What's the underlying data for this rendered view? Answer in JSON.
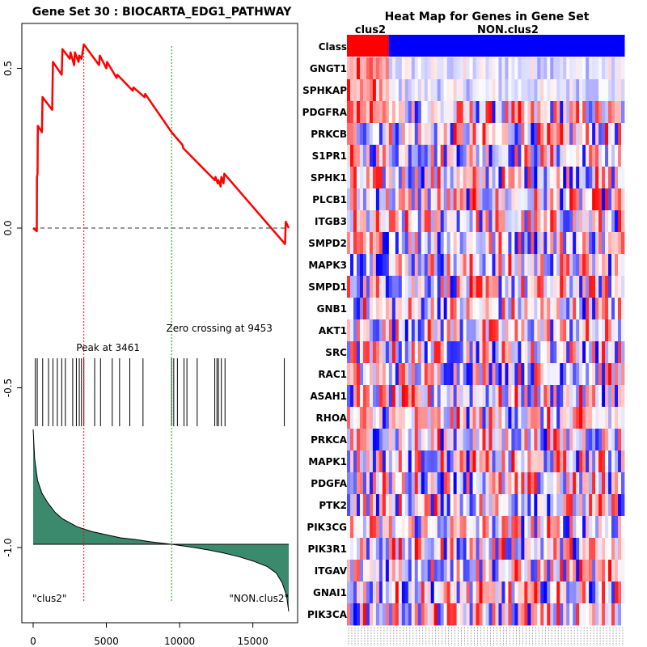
{
  "chart_data": [
    {
      "type": "line",
      "title": "Gene Set  30 : BIOCARTA_EDG1_PATHWAY",
      "xlabel": "",
      "ylabel": "",
      "xlim": [
        0,
        17500
      ],
      "ylim": [
        -1.2,
        0.65
      ],
      "x_ticks": [
        0,
        5000,
        10000,
        15000
      ],
      "x_tick_labels": [
        "0",
        "5000",
        "10000",
        "15000"
      ],
      "y_ticks": [
        0.5,
        0.0,
        -0.5,
        -1.0
      ],
      "y_tick_labels": [
        "0.5",
        "0.0",
        "-0.5",
        "-1.0"
      ],
      "series": [
        {
          "name": "Running enrichment score",
          "color": "#ff0000",
          "points": [
            [
              0,
              0.0
            ],
            [
              250,
              -0.01
            ],
            [
              260,
              0.16
            ],
            [
              300,
              0.17
            ],
            [
              320,
              0.32
            ],
            [
              600,
              0.3
            ],
            [
              640,
              0.41
            ],
            [
              1300,
              0.37
            ],
            [
              1350,
              0.52
            ],
            [
              1950,
              0.48
            ],
            [
              2000,
              0.56
            ],
            [
              2500,
              0.53
            ],
            [
              2550,
              0.55
            ],
            [
              2800,
              0.51
            ],
            [
              2850,
              0.55
            ],
            [
              3100,
              0.52
            ],
            [
              3150,
              0.54
            ],
            [
              3300,
              0.53
            ],
            [
              3461,
              0.575
            ],
            [
              4500,
              0.51
            ],
            [
              4550,
              0.54
            ],
            [
              5000,
              0.5
            ],
            [
              5050,
              0.52
            ],
            [
              5700,
              0.47
            ],
            [
              5750,
              0.48
            ],
            [
              6800,
              0.43
            ],
            [
              6850,
              0.44
            ],
            [
              7600,
              0.41
            ],
            [
              7650,
              0.42
            ],
            [
              9453,
              0.3
            ],
            [
              10200,
              0.26
            ],
            [
              10250,
              0.25
            ],
            [
              12400,
              0.15
            ],
            [
              12450,
              0.16
            ],
            [
              12600,
              0.14
            ],
            [
              12650,
              0.15
            ],
            [
              12800,
              0.13
            ],
            [
              12850,
              0.16
            ],
            [
              13000,
              0.14
            ],
            [
              13050,
              0.17
            ],
            [
              17200,
              -0.05
            ],
            [
              17250,
              0.02
            ],
            [
              17450,
              0.0
            ]
          ]
        }
      ],
      "hit_positions": [
        150,
        280,
        650,
        1050,
        1350,
        1650,
        1950,
        2200,
        2700,
        2950,
        3150,
        3300,
        3461,
        4200,
        4600,
        5400,
        5900,
        6600,
        7500,
        9453,
        9600,
        9850,
        10300,
        10500,
        11200,
        12400,
        12550,
        12650,
        12850,
        13100,
        17150
      ],
      "ranked_metric": {
        "name": "Ranked list metric",
        "color": "#3b8a6e",
        "baseline": -0.99,
        "points": [
          [
            0,
            -0.63
          ],
          [
            100,
            -0.72
          ],
          [
            300,
            -0.79
          ],
          [
            600,
            -0.83
          ],
          [
            1000,
            -0.86
          ],
          [
            1500,
            -0.89
          ],
          [
            2000,
            -0.91
          ],
          [
            3000,
            -0.935
          ],
          [
            4000,
            -0.95
          ],
          [
            5000,
            -0.96
          ],
          [
            6000,
            -0.97
          ],
          [
            7000,
            -0.975
          ],
          [
            8000,
            -0.982
          ],
          [
            9453,
            -0.99
          ],
          [
            11000,
            -1.0
          ],
          [
            12000,
            -1.008
          ],
          [
            13000,
            -1.017
          ],
          [
            14000,
            -1.028
          ],
          [
            15000,
            -1.042
          ],
          [
            16000,
            -1.06
          ],
          [
            16600,
            -1.08
          ],
          [
            17000,
            -1.11
          ],
          [
            17300,
            -1.15
          ],
          [
            17450,
            -1.2
          ]
        ]
      },
      "annotations": {
        "peak": {
          "label": "Peak at 3461",
          "x": 3461,
          "color": "#ff0000"
        },
        "zero_crossing": {
          "label": "Zero crossing at 9453",
          "x": 9453,
          "color": "#00aa00"
        },
        "left_class": "\"clus2\"",
        "right_class": "\"NON.clus2\""
      },
      "grid": false
    },
    {
      "type": "heatmap",
      "title": "Heat Map for Genes in Gene Set",
      "row_header": "Class",
      "class_labels": [
        {
          "name": "clus2",
          "color": "#ff0000",
          "columns": 13
        },
        {
          "name": "NON.clus2",
          "color": "#0000ff",
          "columns": 73
        }
      ],
      "rows": [
        "GNGT1",
        "SPHKAP",
        "PDGFRA",
        "PRKCB",
        "S1PR1",
        "SPHK1",
        "PLCB1",
        "ITGB3",
        "SMPD2",
        "MAPK3",
        "SMPD1",
        "GNB1",
        "AKT1",
        "SRC",
        "RAC1",
        "ASAH1",
        "RHOA",
        "PRKCA",
        "MAPK1",
        "PDGFA",
        "PTK2",
        "PIK3CG",
        "PIK3R1",
        "ITGAV",
        "GNAI1",
        "PIK3CA"
      ],
      "color_scale": {
        "low": "#0000ff",
        "mid": "#ffffff",
        "high": "#ff0000"
      }
    }
  ]
}
